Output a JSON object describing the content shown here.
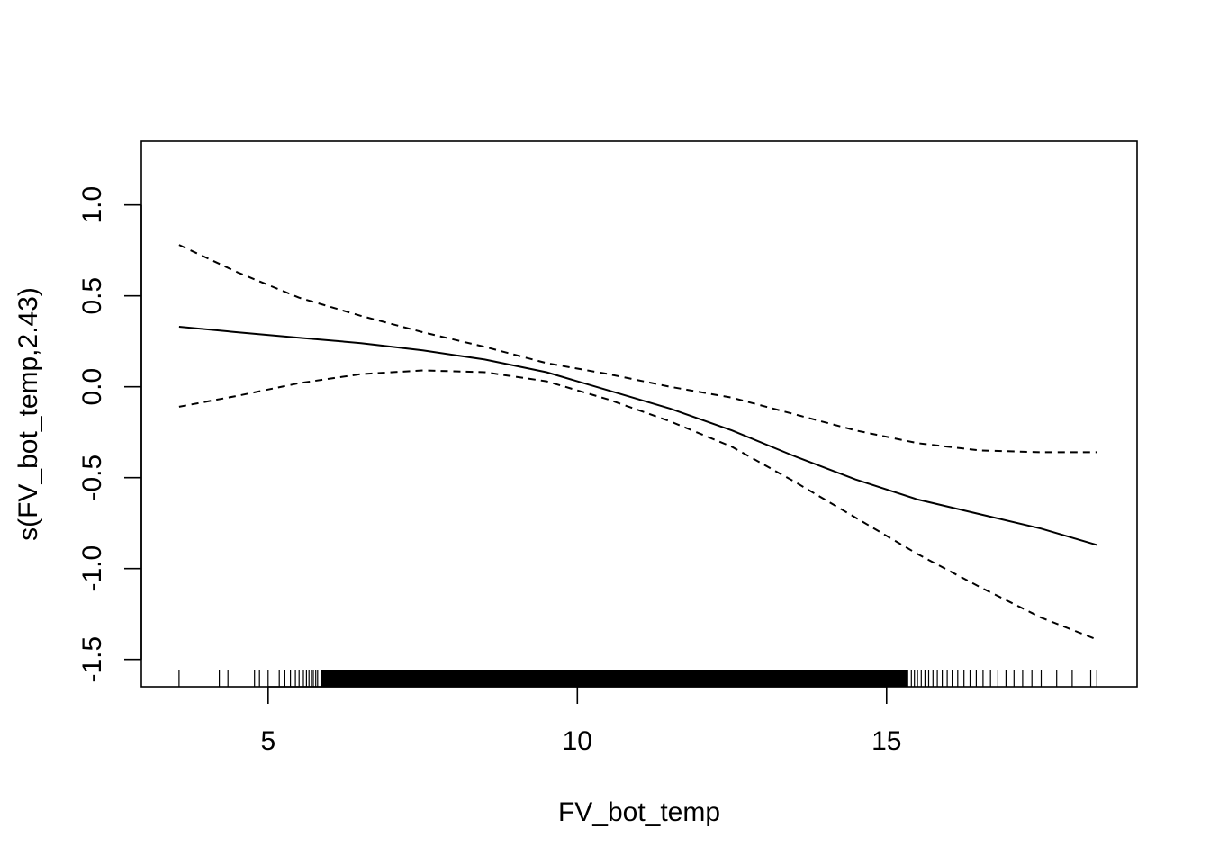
{
  "chart_data": {
    "type": "line",
    "title": "",
    "xlabel": "FV_bot_temp",
    "ylabel": "s(FV_bot_temp,2.43)",
    "xlim": [
      2.95,
      19.05
    ],
    "ylim": [
      -1.65,
      1.35
    ],
    "x_ticks": [
      5,
      10,
      15
    ],
    "x_tick_labels": [
      "5",
      "10",
      "15"
    ],
    "y_ticks": [
      -1.5,
      -1.0,
      -0.5,
      0.0,
      0.5,
      1.0
    ],
    "y_tick_labels": [
      "-1.5",
      "-1.0",
      "-0.5",
      "0.0",
      "0.5",
      "1.0"
    ],
    "grid": false,
    "legend": "none",
    "series": [
      {
        "role": "fit",
        "style": "solid",
        "x": [
          3.56,
          4.5,
          5.5,
          6.5,
          7.5,
          8.5,
          9.5,
          10.5,
          11.5,
          12.5,
          13.5,
          14.5,
          15.5,
          16.5,
          17.5,
          18.4
        ],
        "y": [
          0.33,
          0.3,
          0.27,
          0.24,
          0.2,
          0.15,
          0.08,
          -0.02,
          -0.12,
          -0.24,
          -0.38,
          -0.51,
          -0.62,
          -0.7,
          -0.78,
          -0.87
        ]
      },
      {
        "role": "upper",
        "style": "dashed",
        "x": [
          3.56,
          4.5,
          5.5,
          6.5,
          7.5,
          8.5,
          9.5,
          10.5,
          11.5,
          12.5,
          13.5,
          14.5,
          15.5,
          16.5,
          17.5,
          18.4
        ],
        "y": [
          0.78,
          0.63,
          0.49,
          0.39,
          0.3,
          0.22,
          0.13,
          0.07,
          0.0,
          -0.06,
          -0.15,
          -0.24,
          -0.31,
          -0.35,
          -0.36,
          -0.36
        ]
      },
      {
        "role": "lower",
        "style": "dashed",
        "x": [
          3.56,
          4.5,
          5.5,
          6.5,
          7.5,
          8.5,
          9.5,
          10.5,
          11.5,
          12.5,
          13.5,
          14.5,
          15.5,
          16.5,
          17.5,
          18.4
        ],
        "y": [
          -0.11,
          -0.05,
          0.02,
          0.07,
          0.09,
          0.08,
          0.03,
          -0.07,
          -0.19,
          -0.33,
          -0.52,
          -0.72,
          -0.92,
          -1.1,
          -1.27,
          -1.39
        ]
      }
    ],
    "rug": {
      "dense_range": [
        5.85,
        15.35
      ],
      "points": [
        3.56,
        4.21,
        4.35,
        4.78,
        4.86,
        5.0,
        5.18,
        5.27,
        5.36,
        5.44,
        5.5,
        5.57,
        5.62,
        5.66,
        5.7,
        5.73,
        5.77,
        5.8,
        15.4,
        15.45,
        15.5,
        15.56,
        15.62,
        15.68,
        15.75,
        15.82,
        15.9,
        15.98,
        16.06,
        16.15,
        16.25,
        16.35,
        16.45,
        16.56,
        16.68,
        16.8,
        16.93,
        17.06,
        17.2,
        17.35,
        17.5,
        17.75,
        18.0,
        18.3,
        18.4
      ]
    }
  }
}
